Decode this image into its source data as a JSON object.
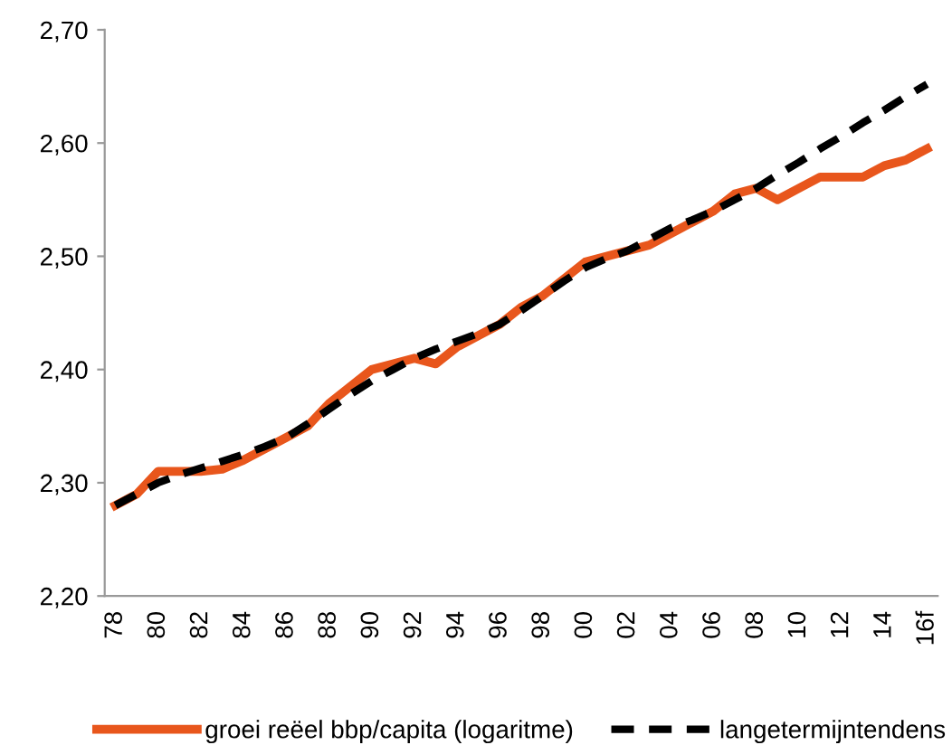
{
  "chart_data": {
    "type": "line",
    "categories": [
      "78",
      null,
      "80",
      null,
      "82",
      null,
      "84",
      null,
      "86",
      null,
      "88",
      null,
      "90",
      null,
      "92",
      null,
      "94",
      null,
      "96",
      null,
      "98",
      null,
      "00",
      null,
      "02",
      null,
      "04",
      null,
      "06",
      null,
      "08",
      null,
      "10",
      null,
      "12",
      null,
      "14",
      null,
      "16f"
    ],
    "series": [
      {
        "name": "groei reëel bbp/capita (logaritme)",
        "color": "#e8561c",
        "line_style": "solid",
        "values": [
          2.28,
          2.29,
          2.31,
          2.31,
          2.31,
          2.312,
          2.32,
          2.33,
          2.34,
          2.35,
          2.37,
          2.385,
          2.4,
          2.405,
          2.41,
          2.405,
          2.42,
          2.43,
          2.44,
          2.455,
          2.465,
          2.48,
          2.495,
          2.5,
          2.505,
          2.51,
          2.52,
          2.53,
          2.54,
          2.555,
          2.56,
          2.55,
          2.56,
          2.57,
          2.57,
          2.57,
          2.58,
          2.585,
          2.595
        ]
      },
      {
        "name": "langetermijntendens",
        "color": "#000000",
        "line_style": "dashed",
        "values": [
          2.28,
          2.29,
          2.3,
          2.307,
          2.313,
          2.319,
          2.325,
          2.332,
          2.34,
          2.352,
          2.365,
          2.378,
          2.39,
          2.4,
          2.41,
          2.418,
          2.425,
          2.432,
          2.44,
          2.452,
          2.465,
          2.478,
          2.49,
          2.498,
          2.505,
          2.515,
          2.525,
          2.532,
          2.54,
          2.55,
          2.56,
          2.572,
          2.583,
          2.595,
          2.606,
          2.618,
          2.629,
          2.641,
          2.652
        ]
      }
    ],
    "ylim": [
      2.2,
      2.7
    ],
    "yticks": [
      {
        "value": 2.2,
        "label": "2,20"
      },
      {
        "value": 2.3,
        "label": "2,30"
      },
      {
        "value": 2.4,
        "label": "2,40"
      },
      {
        "value": 2.5,
        "label": "2,50"
      },
      {
        "value": 2.6,
        "label": "2,60"
      },
      {
        "value": 2.7,
        "label": "2,70"
      }
    ],
    "grid": false,
    "legend": "bottom",
    "marker": "none"
  }
}
